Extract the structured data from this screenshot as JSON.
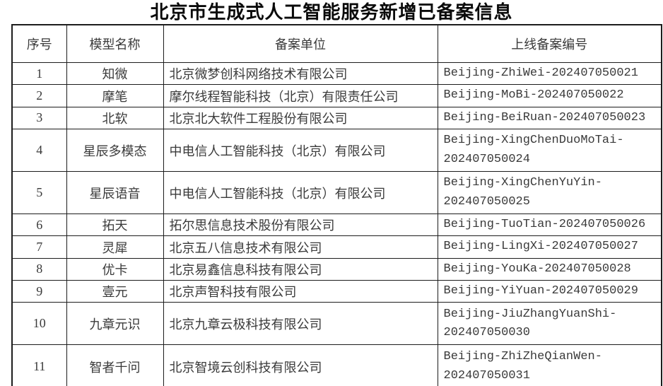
{
  "title": "北京市生成式人工智能服务新增已备案信息",
  "table": {
    "headers": {
      "no": "序号",
      "model": "模型名称",
      "org": "备案单位",
      "code": "上线备案编号"
    },
    "rows": [
      {
        "no": "1",
        "model": "知微",
        "org": "北京微梦创科网络技术有限公司",
        "code": "Beijing-ZhiWei-202407050021"
      },
      {
        "no": "2",
        "model": "摩笔",
        "org": "摩尔线程智能科技（北京）有限责任公司",
        "code": "Beijing-MoBi-202407050022"
      },
      {
        "no": "3",
        "model": "北软",
        "org": "北京北大软件工程股份有限公司",
        "code": "Beijing-BeiRuan-202407050023"
      },
      {
        "no": "4",
        "model": "星辰多模态",
        "org": "中电信人工智能科技（北京）有限公司",
        "code": "Beijing-XingChenDuoMoTai-202407050024"
      },
      {
        "no": "5",
        "model": "星辰语音",
        "org": "中电信人工智能科技（北京）有限公司",
        "code": "Beijing-XingChenYuYin-202407050025"
      },
      {
        "no": "6",
        "model": "拓天",
        "org": "拓尔思信息技术股份有限公司",
        "code": "Beijing-TuoTian-202407050026"
      },
      {
        "no": "7",
        "model": "灵犀",
        "org": "北京五八信息技术有限公司",
        "code": "Beijing-LingXi-202407050027"
      },
      {
        "no": "8",
        "model": "优卡",
        "org": "北京易鑫信息科技有限公司",
        "code": "Beijing-YouKa-202407050028"
      },
      {
        "no": "9",
        "model": "壹元",
        "org": "北京声智科技有限公司",
        "code": "Beijing-YiYuan-202407050029"
      },
      {
        "no": "10",
        "model": "九章元识",
        "org": "北京九章云极科技有限公司",
        "code": "Beijing-JiuZhangYuanShi-202407050030"
      },
      {
        "no": "11",
        "model": "智者千问",
        "org": "北京智境云创科技有限公司",
        "code": "Beijing-ZhiZheQianWen-202407050031"
      }
    ]
  }
}
